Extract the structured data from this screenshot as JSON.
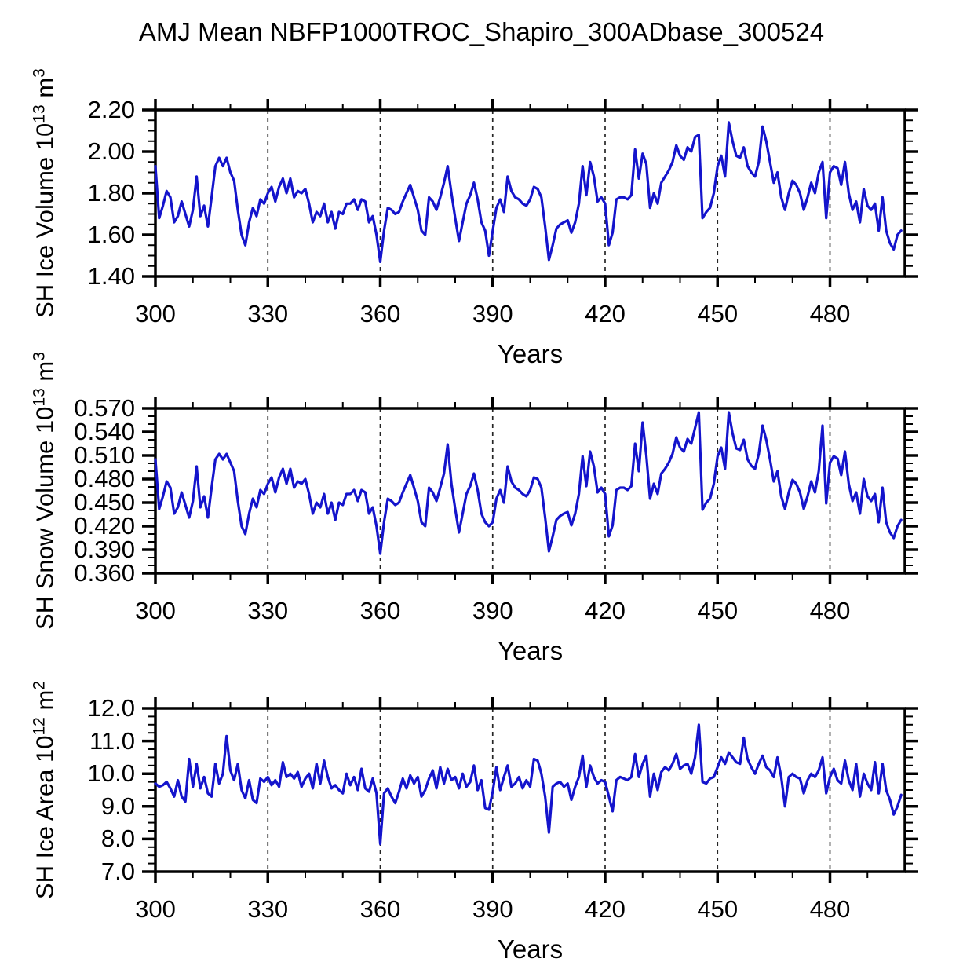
{
  "title": "AMJ Mean NBFP1000TROC_Shapiro_300ADbase_300524",
  "style": {
    "line_color": "#1414cc",
    "axis_color": "#000000",
    "grid_color": "#000000",
    "background": "#ffffff"
  },
  "xaxis": {
    "label": "Years",
    "min": 300,
    "max": 500,
    "major_ticks": [
      300,
      330,
      360,
      390,
      420,
      450,
      480
    ],
    "major_tick_labels": [
      "300",
      "330",
      "360",
      "390",
      "420",
      "450",
      "480"
    ],
    "minor_step": 10,
    "grid_years": [
      330,
      360,
      390,
      420,
      450,
      480
    ]
  },
  "chart_data": [
    {
      "type": "line",
      "series_name": "SH Ice Volume",
      "ylabel": "SH Ice Volume 10¹³ m³",
      "ylabel_parts": [
        {
          "t": "SH Ice Volume 10"
        },
        {
          "t": "13",
          "sup": true
        },
        {
          "t": " m"
        },
        {
          "t": "3",
          "sup": true
        }
      ],
      "xlabel": "Years",
      "ylim": [
        1.4,
        2.2
      ],
      "yticks": [
        {
          "v": 2.2,
          "label": "2.20"
        },
        {
          "v": 2.0,
          "label": "2.00"
        },
        {
          "v": 1.8,
          "label": "1.80"
        },
        {
          "v": 1.6,
          "label": "1.60"
        },
        {
          "v": 1.4,
          "label": "1.40"
        }
      ],
      "yminor": {
        "start": 1.4,
        "step": 0.05
      },
      "x_start": 300,
      "x_step": 1,
      "x_end": 499,
      "values": [
        1.93,
        1.68,
        1.74,
        1.81,
        1.78,
        1.66,
        1.69,
        1.76,
        1.7,
        1.64,
        1.72,
        1.88,
        1.69,
        1.74,
        1.64,
        1.78,
        1.93,
        1.97,
        1.93,
        1.97,
        1.9,
        1.86,
        1.72,
        1.6,
        1.55,
        1.66,
        1.73,
        1.69,
        1.77,
        1.75,
        1.8,
        1.83,
        1.76,
        1.83,
        1.87,
        1.8,
        1.87,
        1.78,
        1.81,
        1.8,
        1.82,
        1.75,
        1.66,
        1.71,
        1.69,
        1.75,
        1.66,
        1.71,
        1.63,
        1.71,
        1.7,
        1.75,
        1.75,
        1.77,
        1.72,
        1.77,
        1.76,
        1.66,
        1.69,
        1.6,
        1.47,
        1.62,
        1.73,
        1.72,
        1.7,
        1.71,
        1.76,
        1.8,
        1.84,
        1.78,
        1.72,
        1.62,
        1.6,
        1.78,
        1.76,
        1.72,
        1.78,
        1.85,
        1.93,
        1.8,
        1.68,
        1.57,
        1.66,
        1.75,
        1.79,
        1.85,
        1.77,
        1.66,
        1.62,
        1.5,
        1.62,
        1.73,
        1.77,
        1.71,
        1.88,
        1.81,
        1.78,
        1.77,
        1.75,
        1.74,
        1.77,
        1.83,
        1.82,
        1.78,
        1.64,
        1.48,
        1.55,
        1.63,
        1.65,
        1.66,
        1.67,
        1.61,
        1.66,
        1.75,
        1.93,
        1.79,
        1.95,
        1.88,
        1.76,
        1.78,
        1.75,
        1.55,
        1.61,
        1.77,
        1.78,
        1.78,
        1.77,
        1.79,
        2.01,
        1.87,
        1.99,
        1.94,
        1.73,
        1.8,
        1.75,
        1.85,
        1.88,
        1.91,
        1.95,
        2.03,
        1.98,
        1.96,
        2.02,
        2.0,
        2.07,
        2.08,
        1.68,
        1.71,
        1.73,
        1.8,
        1.93,
        1.98,
        1.88,
        2.14,
        2.05,
        1.98,
        1.97,
        2.02,
        1.93,
        1.9,
        1.88,
        1.95,
        2.12,
        2.05,
        1.95,
        1.85,
        1.9,
        1.78,
        1.72,
        1.8,
        1.86,
        1.84,
        1.8,
        1.72,
        1.78,
        1.85,
        1.8,
        1.9,
        1.95,
        1.68,
        1.9,
        1.93,
        1.92,
        1.84,
        1.95,
        1.8,
        1.72,
        1.76,
        1.66,
        1.82,
        1.74,
        1.72,
        1.75,
        1.62,
        1.78,
        1.62,
        1.56,
        1.53,
        1.6,
        1.62
      ]
    },
    {
      "type": "line",
      "series_name": "SH Snow Volume",
      "ylabel": "SH Snow Volume 10¹³ m³",
      "ylabel_parts": [
        {
          "t": "SH Snow Volume 10"
        },
        {
          "t": "13",
          "sup": true
        },
        {
          "t": " m"
        },
        {
          "t": "3",
          "sup": true
        }
      ],
      "xlabel": "Years",
      "ylim": [
        0.36,
        0.57
      ],
      "yticks": [
        {
          "v": 0.57,
          "label": "0.570"
        },
        {
          "v": 0.54,
          "label": "0.540"
        },
        {
          "v": 0.51,
          "label": "0.510"
        },
        {
          "v": 0.48,
          "label": "0.480"
        },
        {
          "v": 0.45,
          "label": "0.450"
        },
        {
          "v": 0.42,
          "label": "0.420"
        },
        {
          "v": 0.39,
          "label": "0.390"
        },
        {
          "v": 0.36,
          "label": "0.360"
        }
      ],
      "yminor": {
        "start": 0.36,
        "step": 0.01
      },
      "x_start": 300,
      "x_step": 1,
      "x_end": 499,
      "values": [
        0.505,
        0.442,
        0.458,
        0.477,
        0.469,
        0.436,
        0.444,
        0.463,
        0.447,
        0.431,
        0.452,
        0.496,
        0.444,
        0.458,
        0.431,
        0.469,
        0.505,
        0.512,
        0.505,
        0.512,
        0.501,
        0.49,
        0.452,
        0.42,
        0.41,
        0.436,
        0.455,
        0.444,
        0.466,
        0.461,
        0.474,
        0.482,
        0.463,
        0.482,
        0.493,
        0.474,
        0.493,
        0.469,
        0.477,
        0.474,
        0.48,
        0.461,
        0.436,
        0.45,
        0.444,
        0.461,
        0.436,
        0.45,
        0.428,
        0.45,
        0.447,
        0.461,
        0.461,
        0.466,
        0.452,
        0.466,
        0.463,
        0.436,
        0.444,
        0.42,
        0.385,
        0.425,
        0.455,
        0.452,
        0.447,
        0.45,
        0.463,
        0.474,
        0.485,
        0.469,
        0.452,
        0.425,
        0.42,
        0.469,
        0.463,
        0.452,
        0.469,
        0.487,
        0.524,
        0.474,
        0.442,
        0.412,
        0.436,
        0.461,
        0.471,
        0.487,
        0.466,
        0.436,
        0.425,
        0.42,
        0.425,
        0.455,
        0.466,
        0.45,
        0.496,
        0.477,
        0.469,
        0.466,
        0.461,
        0.458,
        0.466,
        0.482,
        0.48,
        0.469,
        0.431,
        0.388,
        0.407,
        0.428,
        0.433,
        0.436,
        0.438,
        0.421,
        0.436,
        0.461,
        0.509,
        0.471,
        0.515,
        0.496,
        0.463,
        0.469,
        0.461,
        0.407,
        0.421,
        0.466,
        0.469,
        0.469,
        0.466,
        0.471,
        0.525,
        0.49,
        0.552,
        0.51,
        0.455,
        0.474,
        0.461,
        0.487,
        0.493,
        0.501,
        0.512,
        0.533,
        0.52,
        0.515,
        0.531,
        0.525,
        0.545,
        0.565,
        0.441,
        0.45,
        0.455,
        0.474,
        0.509,
        0.52,
        0.493,
        0.565,
        0.538,
        0.519,
        0.517,
        0.53,
        0.505,
        0.497,
        0.493,
        0.512,
        0.548,
        0.53,
        0.505,
        0.477,
        0.49,
        0.458,
        0.442,
        0.463,
        0.479,
        0.474,
        0.463,
        0.442,
        0.458,
        0.477,
        0.463,
        0.49,
        0.548,
        0.449,
        0.501,
        0.509,
        0.506,
        0.485,
        0.515,
        0.474,
        0.452,
        0.463,
        0.436,
        0.48,
        0.458,
        0.452,
        0.461,
        0.425,
        0.469,
        0.425,
        0.412,
        0.405,
        0.42,
        0.428
      ]
    },
    {
      "type": "line",
      "series_name": "SH Ice Area",
      "ylabel": "SH Ice Area 10¹² m²",
      "ylabel_parts": [
        {
          "t": "SH Ice Area 10"
        },
        {
          "t": "12",
          "sup": true
        },
        {
          "t": " m"
        },
        {
          "t": "2",
          "sup": true
        }
      ],
      "xlabel": "Years",
      "ylim": [
        7.0,
        12.0
      ],
      "yticks": [
        {
          "v": 12.0,
          "label": "12.0"
        },
        {
          "v": 11.0,
          "label": "11.0"
        },
        {
          "v": 10.0,
          "label": "10.0"
        },
        {
          "v": 9.0,
          "label": "9.0"
        },
        {
          "v": 8.0,
          "label": "8.0"
        },
        {
          "v": 7.0,
          "label": "7.0"
        }
      ],
      "yminor": {
        "start": 7.0,
        "step": 0.25
      },
      "x_start": 300,
      "x_step": 1,
      "x_end": 499,
      "values": [
        9.7,
        9.6,
        9.65,
        9.75,
        9.55,
        9.3,
        9.8,
        9.3,
        9.15,
        10.45,
        9.6,
        10.3,
        9.55,
        9.9,
        9.4,
        9.3,
        10.3,
        9.7,
        10.0,
        11.15,
        10.1,
        9.8,
        10.3,
        9.5,
        9.25,
        9.8,
        9.2,
        9.1,
        9.85,
        9.75,
        9.9,
        9.65,
        9.8,
        9.6,
        10.35,
        9.9,
        10.0,
        9.85,
        10.05,
        9.6,
        9.85,
        10.0,
        9.55,
        10.3,
        9.7,
        10.4,
        9.9,
        9.55,
        9.65,
        9.5,
        9.4,
        10.0,
        9.65,
        9.9,
        9.5,
        10.15,
        9.55,
        9.45,
        9.85,
        9.4,
        7.85,
        9.4,
        9.55,
        9.3,
        9.1,
        9.45,
        9.85,
        9.55,
        9.95,
        9.7,
        9.9,
        9.3,
        9.5,
        9.85,
        10.1,
        9.55,
        10.2,
        9.7,
        10.15,
        9.8,
        9.9,
        9.55,
        10.0,
        9.6,
        9.75,
        10.25,
        9.5,
        9.8,
        8.95,
        8.9,
        9.45,
        10.2,
        9.5,
        9.9,
        10.25,
        9.6,
        9.7,
        9.9,
        9.55,
        9.8,
        9.6,
        10.45,
        10.4,
        10.0,
        9.3,
        8.2,
        9.6,
        9.7,
        9.75,
        9.6,
        9.7,
        9.2,
        9.6,
        9.9,
        10.55,
        9.6,
        10.25,
        9.9,
        9.7,
        9.8,
        9.75,
        9.3,
        8.85,
        9.8,
        9.9,
        9.85,
        9.8,
        9.9,
        10.6,
        9.9,
        10.3,
        10.55,
        9.3,
        10.0,
        9.5,
        10.05,
        10.2,
        10.1,
        10.3,
        10.6,
        10.15,
        10.25,
        10.3,
        10.0,
        10.5,
        11.5,
        9.75,
        9.7,
        9.85,
        9.9,
        10.2,
        10.5,
        10.3,
        10.65,
        10.5,
        10.35,
        10.3,
        11.1,
        10.45,
        10.2,
        10.0,
        10.3,
        10.55,
        10.2,
        10.1,
        9.9,
        10.5,
        9.9,
        9.0,
        9.9,
        10.0,
        9.9,
        9.85,
        9.4,
        9.8,
        10.0,
        9.9,
        10.1,
        10.5,
        9.4,
        9.9,
        10.15,
        9.8,
        9.7,
        10.4,
        9.8,
        9.5,
        10.3,
        9.3,
        10.0,
        9.7,
        9.5,
        10.35,
        9.4,
        10.3,
        9.5,
        9.2,
        8.75,
        9.0,
        9.35
      ]
    }
  ]
}
